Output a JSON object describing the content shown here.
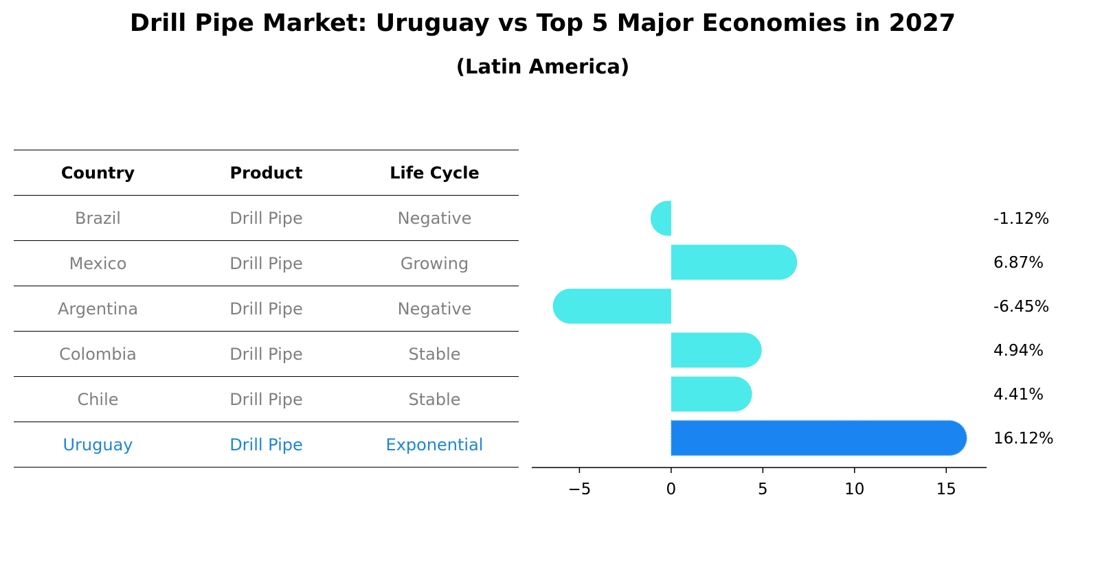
{
  "title": "Drill Pipe Market: Uruguay vs Top 5 Major Economies in 2027",
  "subtitle": "(Latin America)",
  "table": {
    "headers": [
      "Country",
      "Product",
      "Life Cycle"
    ],
    "rows": [
      [
        "Brazil",
        "Drill Pipe",
        "Negative"
      ],
      [
        "Mexico",
        "Drill Pipe",
        "Growing"
      ],
      [
        "Argentina",
        "Drill Pipe",
        "Negative"
      ],
      [
        "Colombia",
        "Drill Pipe",
        "Stable"
      ],
      [
        "Chile",
        "Drill Pipe",
        "Stable"
      ],
      [
        "Uruguay",
        "Drill Pipe",
        "Exponential"
      ]
    ],
    "highlight_row": 5
  },
  "chart_data": {
    "type": "bar",
    "orientation": "horizontal",
    "categories": [
      "Brazil",
      "Mexico",
      "Argentina",
      "Colombia",
      "Chile",
      "Uruguay"
    ],
    "values": [
      -1.12,
      6.87,
      -6.45,
      4.94,
      4.41,
      16.12
    ],
    "value_labels": [
      "-1.12%",
      "6.87%",
      "-6.45%",
      "4.94%",
      "4.41%",
      "16.12%"
    ],
    "xticks": [
      "−5",
      "0",
      "5",
      "10",
      "15"
    ],
    "xtick_values": [
      -5,
      0,
      5,
      10,
      15
    ],
    "xlim": [
      -7.6,
      17.2
    ],
    "grid": false,
    "colors": {
      "default": "#4ceaea",
      "highlight": "#1a84f0"
    },
    "highlight_index": 5
  }
}
